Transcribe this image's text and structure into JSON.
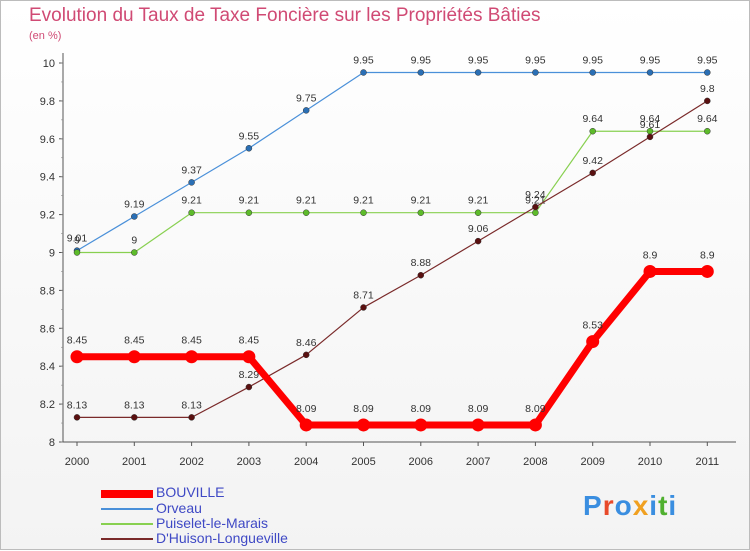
{
  "chart_data": {
    "type": "line",
    "title": "Evolution du Taux de Taxe Foncière sur les Propriétés Bâties",
    "subtitle": "(en %)",
    "x": [
      "2000",
      "2001",
      "2002",
      "2003",
      "2004",
      "2005",
      "2006",
      "2007",
      "2008",
      "2009",
      "2010",
      "2011"
    ],
    "ylim": [
      8,
      10
    ],
    "yticks": [
      "8",
      "8.2",
      "8.4",
      "8.6",
      "8.8",
      "9",
      "9.2",
      "9.4",
      "9.6",
      "9.8",
      "10"
    ],
    "grid": false,
    "series": [
      {
        "name": "Orveau",
        "color": "#4a90d9",
        "marker": "#2a6fb5",
        "width": 1.2,
        "values": [
          9.01,
          9.19,
          9.37,
          9.55,
          9.75,
          9.95,
          9.95,
          9.95,
          9.95,
          9.95,
          9.95,
          9.95
        ],
        "labels": [
          "9.01",
          "9.19",
          "9.37",
          "9.55",
          "9.75",
          "9.95",
          "9.95",
          "9.95",
          "9.95",
          "9.95",
          "9.95",
          "9.95"
        ]
      },
      {
        "name": "Puiselet-le-Marais",
        "color": "#88d050",
        "marker": "#5dbb2a",
        "width": 1.2,
        "values": [
          9,
          9,
          9.21,
          9.21,
          9.21,
          9.21,
          9.21,
          9.21,
          9.21,
          9.64,
          9.64,
          9.64
        ],
        "labels": [
          "9",
          "9",
          "9.21",
          "9.21",
          "9.21",
          "9.21",
          "9.21",
          "9.21",
          "9.21",
          "9.64",
          "9.64",
          "9.64"
        ]
      },
      {
        "name": "D'Huison-Longueville",
        "color": "#7a2a2a",
        "marker": "#5a1010",
        "width": 1.2,
        "values": [
          8.13,
          8.13,
          8.13,
          8.29,
          8.46,
          8.71,
          8.88,
          9.06,
          9.24,
          9.42,
          9.61,
          9.8
        ],
        "labels": [
          "8.13",
          "8.13",
          "8.13",
          "8.29",
          "8.46",
          "8.71",
          "8.88",
          "9.06",
          "9.24",
          "9.42",
          "9.61",
          "9.8"
        ]
      },
      {
        "name": "BOUVILLE",
        "color": "#ff0000",
        "marker": "#ff0000",
        "width": 7,
        "values": [
          8.45,
          8.45,
          8.45,
          8.45,
          8.09,
          8.09,
          8.09,
          8.09,
          8.09,
          8.53,
          8.9,
          8.9
        ],
        "labels": [
          "8.45",
          "8.45",
          "8.45",
          "8.45",
          "8.09",
          "8.09",
          "8.09",
          "8.09",
          "8.09",
          "8.53",
          "8.9",
          "8.9"
        ]
      }
    ],
    "legend": [
      "BOUVILLE",
      "Orveau",
      "Puiselet-le-Marais",
      "D'Huison-Longueville"
    ],
    "legend_position": "bottom-left"
  },
  "logo": {
    "text": "Proxiti",
    "colors": [
      "#3a8ee0",
      "#e84a2a",
      "#3a8ee0",
      "#f0a020",
      "#3a8ee0",
      "#50b030",
      "#3a8ee0"
    ]
  }
}
